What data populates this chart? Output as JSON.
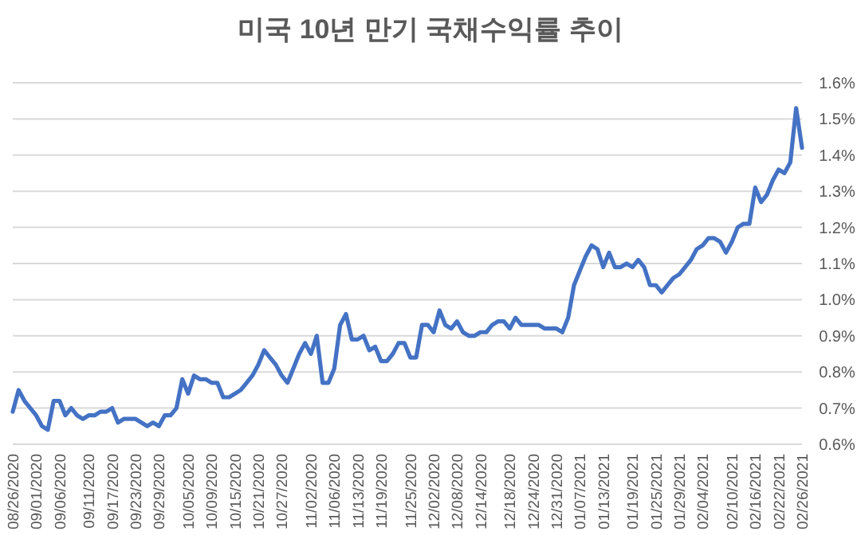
{
  "chart_data": {
    "type": "line",
    "title": "미국 10년 만기 국채수익률 추이",
    "categories": [
      "08/26/2020",
      null,
      null,
      null,
      "09/01/2020",
      null,
      null,
      null,
      "09/06/2020",
      null,
      null,
      null,
      null,
      "09/11/2020",
      null,
      null,
      null,
      "09/17/2020",
      null,
      null,
      null,
      "09/23/2020",
      null,
      null,
      null,
      "09/29/2020",
      null,
      null,
      null,
      null,
      "10/05/2020",
      null,
      null,
      null,
      "10/09/2020",
      null,
      null,
      null,
      "10/15/2020",
      null,
      null,
      null,
      "10/21/2020",
      null,
      null,
      null,
      "10/27/2020",
      null,
      null,
      null,
      null,
      "11/02/2020",
      null,
      null,
      null,
      "11/06/2020",
      null,
      null,
      null,
      "11/13/2020",
      null,
      null,
      null,
      "11/19/2020",
      null,
      null,
      null,
      null,
      "11/25/2020",
      null,
      null,
      null,
      "12/02/2020",
      null,
      null,
      null,
      "12/08/2020",
      null,
      null,
      null,
      "12/14/2020",
      null,
      null,
      null,
      null,
      "12/18/2020",
      null,
      null,
      null,
      "12/24/2020",
      null,
      null,
      null,
      "12/31/2020",
      null,
      null,
      null,
      "01/07/2021",
      null,
      null,
      null,
      "01/13/2021",
      null,
      null,
      null,
      null,
      "01/19/2021",
      null,
      null,
      null,
      "01/25/2021",
      null,
      null,
      null,
      "01/29/2021",
      null,
      null,
      null,
      "02/04/2021",
      null,
      null,
      null,
      null,
      "02/10/2021",
      null,
      null,
      null,
      "02/16/2021",
      null,
      null,
      null,
      "02/22/2021",
      null,
      null,
      null,
      "02/26/2021"
    ],
    "values": [
      0.69,
      0.75,
      0.72,
      0.7,
      0.68,
      0.65,
      0.64,
      0.72,
      0.72,
      0.68,
      0.7,
      0.68,
      0.67,
      0.68,
      0.68,
      0.69,
      0.69,
      0.7,
      0.66,
      0.67,
      0.67,
      0.67,
      0.66,
      0.65,
      0.66,
      0.65,
      0.68,
      0.68,
      0.7,
      0.78,
      0.74,
      0.79,
      0.78,
      0.78,
      0.77,
      0.77,
      0.73,
      0.73,
      0.74,
      0.75,
      0.77,
      0.79,
      0.82,
      0.86,
      0.84,
      0.82,
      0.79,
      0.77,
      0.81,
      0.85,
      0.88,
      0.85,
      0.9,
      0.77,
      0.77,
      0.81,
      0.93,
      0.96,
      0.89,
      0.89,
      0.9,
      0.86,
      0.87,
      0.83,
      0.83,
      0.85,
      0.88,
      0.88,
      0.84,
      0.84,
      0.93,
      0.93,
      0.91,
      0.97,
      0.93,
      0.92,
      0.94,
      0.91,
      0.9,
      0.9,
      0.91,
      0.91,
      0.93,
      0.94,
      0.94,
      0.92,
      0.95,
      0.93,
      0.93,
      0.93,
      0.93,
      0.92,
      0.92,
      0.92,
      0.91,
      0.95,
      1.04,
      1.08,
      1.12,
      1.15,
      1.14,
      1.09,
      1.13,
      1.09,
      1.09,
      1.1,
      1.09,
      1.11,
      1.09,
      1.04,
      1.04,
      1.02,
      1.04,
      1.06,
      1.07,
      1.09,
      1.11,
      1.14,
      1.15,
      1.17,
      1.17,
      1.16,
      1.13,
      1.16,
      1.2,
      1.21,
      1.21,
      1.31,
      1.27,
      1.29,
      1.33,
      1.36,
      1.35,
      1.38,
      1.53,
      1.42
    ],
    "color": "#4472c4",
    "ylim": [
      0.6,
      1.6
    ],
    "yticks": [
      {
        "value": 0.6,
        "label": "0.6%"
      },
      {
        "value": 0.7,
        "label": "0.7%"
      },
      {
        "value": 0.8,
        "label": "0.8%"
      },
      {
        "value": 0.9,
        "label": "0.9%"
      },
      {
        "value": 1.0,
        "label": "1.0%"
      },
      {
        "value": 1.1,
        "label": "1.1%"
      },
      {
        "value": 1.2,
        "label": "1.2%"
      },
      {
        "value": 1.3,
        "label": "1.3%"
      },
      {
        "value": 1.4,
        "label": "1.4%"
      },
      {
        "value": 1.5,
        "label": "1.5%"
      },
      {
        "value": 1.6,
        "label": "1.6%"
      }
    ],
    "grid": "y"
  }
}
